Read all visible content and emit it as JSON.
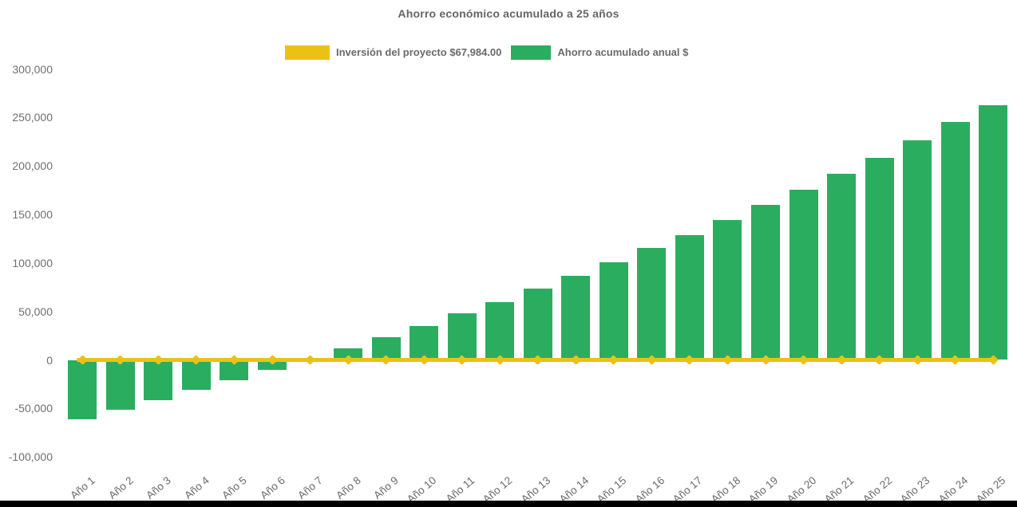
{
  "title": "Ahorro económico acumulado a 25 años",
  "colors": {
    "bar_green": "#2BAD60",
    "line_yellow": "#EAC216",
    "title_gray": "#666666",
    "axis_label_gray": "#707070",
    "bottom_strip_black": "#000000"
  },
  "legend": {
    "items": [
      {
        "label": "Inversión del proyecto $67,984.00",
        "color": "#EAC216",
        "type": "line"
      },
      {
        "label": "Ahorro acumulado anual $",
        "color": "#2BAD60",
        "type": "bar"
      }
    ]
  },
  "chart_data": {
    "type": "bar",
    "title": "Ahorro económico acumulado a 25 años",
    "categories": [
      "Año 1",
      "Año 2",
      "Año 3",
      "Año 4",
      "Año 5",
      "Año 6",
      "Año 7",
      "Año 8",
      "Año 9",
      "Año 10",
      "Año 11",
      "Año 12",
      "Año 13",
      "Año 14",
      "Año 15",
      "Año 16",
      "Año 17",
      "Año 18",
      "Año 19",
      "Año 20",
      "Año 21",
      "Año 22",
      "Año 23",
      "Año 24",
      "Año 25"
    ],
    "series": [
      {
        "name": "Inversión del proyecto $67,984.00",
        "type": "line",
        "color": "#EAC216",
        "values": [
          0,
          0,
          0,
          0,
          0,
          0,
          0,
          0,
          0,
          0,
          0,
          0,
          0,
          0,
          0,
          0,
          0,
          0,
          0,
          0,
          0,
          0,
          0,
          0,
          0
        ]
      },
      {
        "name": "Ahorro acumulado anual $",
        "type": "bar",
        "color": "#2BAD60",
        "values": [
          -61200,
          -51400,
          -41500,
          -31100,
          -20700,
          -10300,
          1500,
          12200,
          23700,
          35200,
          48300,
          59800,
          73300,
          86700,
          100700,
          115200,
          128900,
          144000,
          159900,
          175200,
          191900,
          208600,
          226200,
          245100,
          262900
        ]
      }
    ],
    "xlabel": "",
    "ylabel": "",
    "ylim": [
      -100000,
      300000
    ],
    "ytick_step": 50000,
    "yticks": [
      {
        "label": "300,000",
        "value": 300000
      },
      {
        "label": "250,000",
        "value": 250000
      },
      {
        "label": "200,000",
        "value": 200000
      },
      {
        "label": "150,000",
        "value": 150000
      },
      {
        "label": "100,000",
        "value": 100000
      },
      {
        "label": "50,000",
        "value": 50000
      },
      {
        "label": "0",
        "value": 0
      },
      {
        "label": "-50,000",
        "value": -50000
      },
      {
        "label": "-100,000",
        "value": -100000
      }
    ],
    "grid": false,
    "legend_position": "top"
  }
}
